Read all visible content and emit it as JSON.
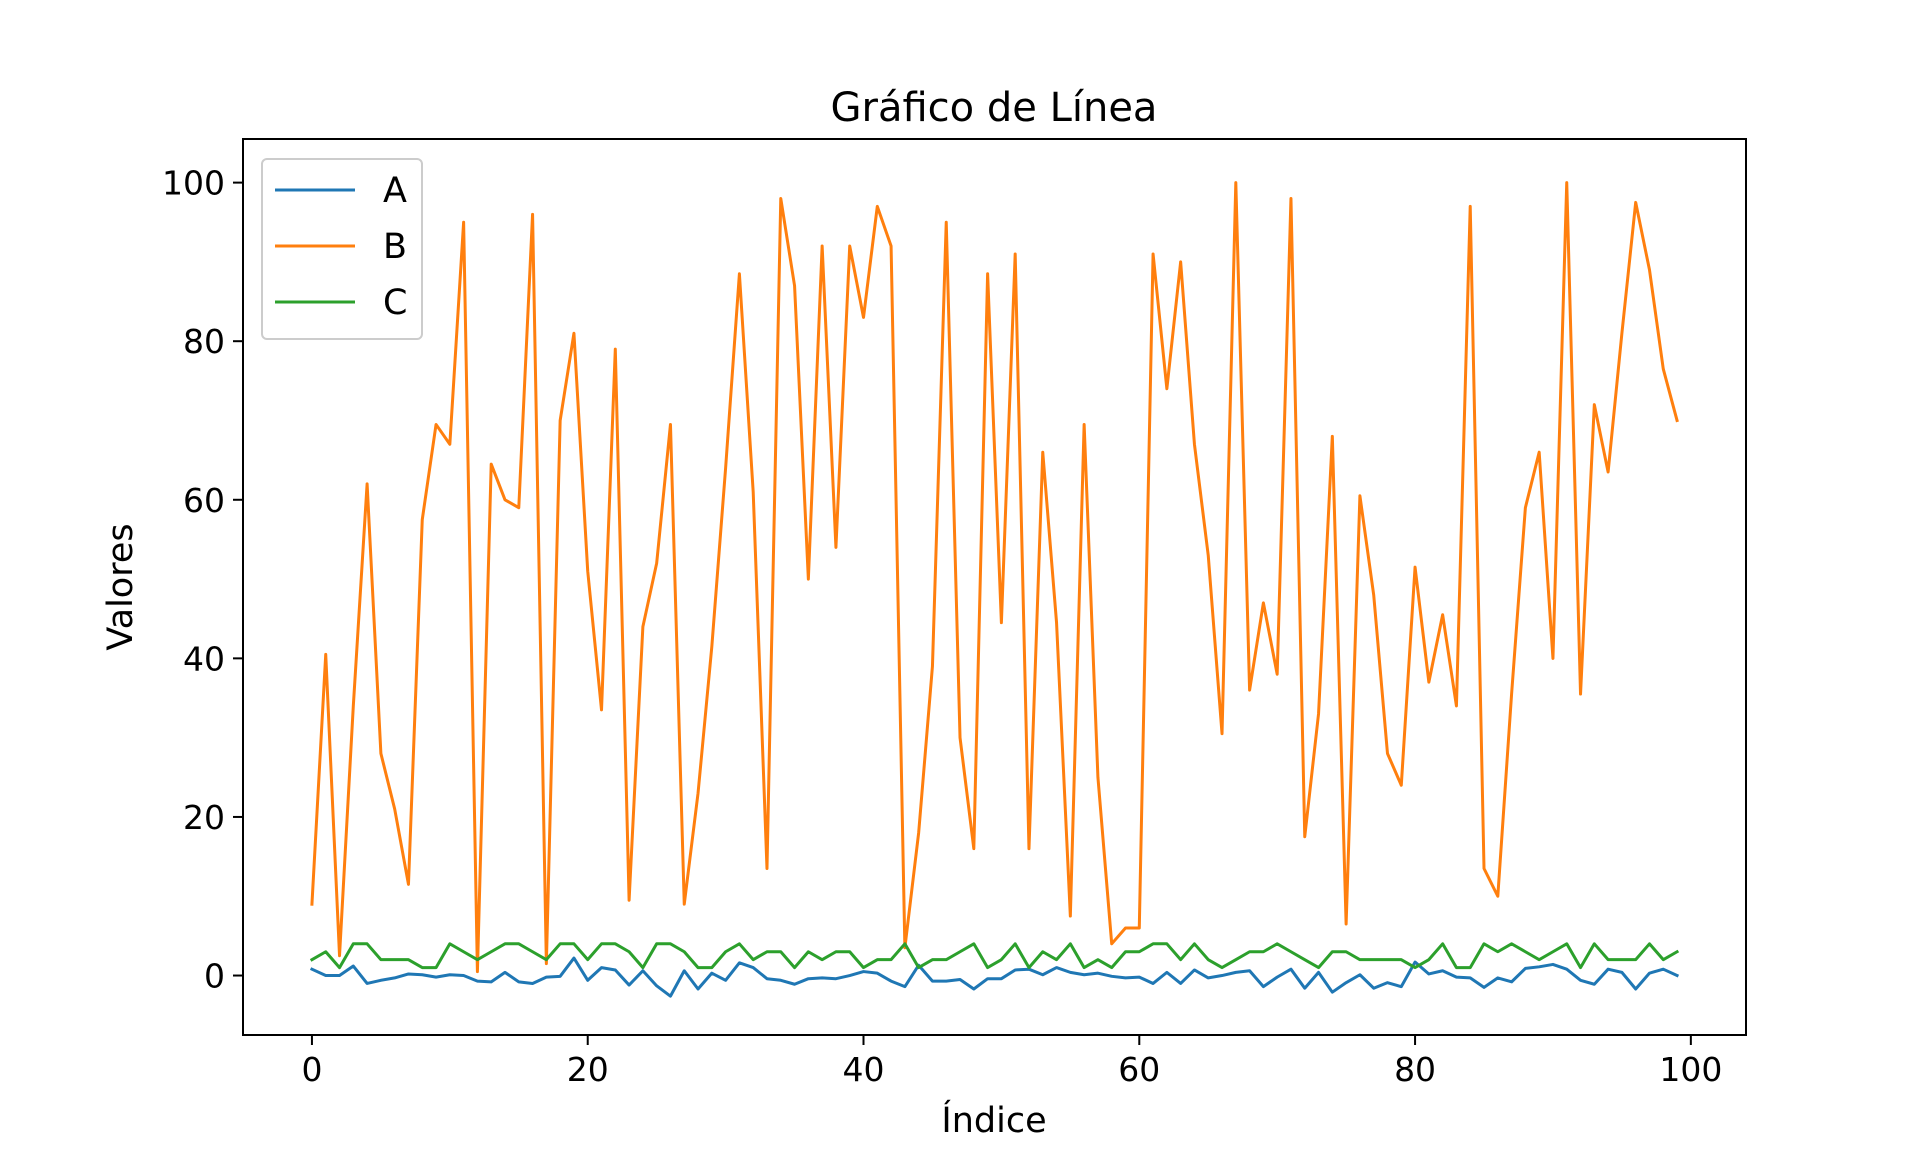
{
  "chart_data": {
    "type": "line",
    "title": "Gráfico de Línea",
    "xlabel": "Índice",
    "ylabel": "Valores",
    "xlim": [
      -5,
      104
    ],
    "ylim": [
      -7.5,
      105.5
    ],
    "xticks": [
      0,
      20,
      40,
      60,
      80,
      100
    ],
    "yticks": [
      0,
      20,
      40,
      60,
      80,
      100
    ],
    "grid": false,
    "legend_position": "upper-left",
    "x": [
      0,
      1,
      2,
      3,
      4,
      5,
      6,
      7,
      8,
      9,
      10,
      11,
      12,
      13,
      14,
      15,
      16,
      17,
      18,
      19,
      20,
      21,
      22,
      23,
      24,
      25,
      26,
      27,
      28,
      29,
      30,
      31,
      32,
      33,
      34,
      35,
      36,
      37,
      38,
      39,
      40,
      41,
      42,
      43,
      44,
      45,
      46,
      47,
      48,
      49,
      50,
      51,
      52,
      53,
      54,
      55,
      56,
      57,
      58,
      59,
      60,
      61,
      62,
      63,
      64,
      65,
      66,
      67,
      68,
      69,
      70,
      71,
      72,
      73,
      74,
      75,
      76,
      77,
      78,
      79,
      80,
      81,
      82,
      83,
      84,
      85,
      86,
      87,
      88,
      89,
      90,
      91,
      92,
      93,
      94,
      95,
      96,
      97,
      98,
      99
    ],
    "series": [
      {
        "name": "A",
        "color": "#1f77b4",
        "values": [
          0.8,
          0.0,
          0.0,
          1.2,
          -1.0,
          -0.6,
          -0.3,
          0.2,
          0.1,
          -0.2,
          0.1,
          0.0,
          -0.7,
          -0.8,
          0.4,
          -0.8,
          -1.0,
          -0.2,
          -0.1,
          2.2,
          -0.6,
          1.0,
          0.7,
          -1.2,
          0.6,
          -1.3,
          -2.6,
          0.6,
          -1.7,
          0.3,
          -0.6,
          1.6,
          1.0,
          -0.4,
          -0.6,
          -1.1,
          -0.4,
          -0.3,
          -0.4,
          0.0,
          0.5,
          0.3,
          -0.7,
          -1.4,
          1.3,
          -0.7,
          -0.7,
          -0.5,
          -1.7,
          -0.4,
          -0.4,
          0.7,
          0.8,
          0.1,
          1.0,
          0.4,
          0.1,
          0.3,
          -0.1,
          -0.3,
          -0.2,
          -1.0,
          0.4,
          -1.0,
          0.7,
          -0.3,
          0.0,
          0.4,
          0.6,
          -1.4,
          -0.2,
          0.8,
          -1.6,
          0.4,
          -2.1,
          -0.9,
          0.1,
          -1.6,
          -0.9,
          -1.4,
          1.7,
          0.2,
          0.6,
          -0.2,
          -0.3,
          -1.5,
          -0.3,
          -0.8,
          0.9,
          1.1,
          1.4,
          0.8,
          -0.6,
          -1.1,
          0.8,
          0.4,
          -1.7,
          0.3,
          0.8,
          0.0
        ]
      },
      {
        "name": "B",
        "color": "#ff7f0e",
        "values": [
          9,
          40.5,
          2.5,
          34,
          62,
          28,
          21,
          11.5,
          57.5,
          69.5,
          67,
          95,
          0.5,
          64.5,
          60,
          59,
          96,
          1.5,
          70,
          81,
          51,
          33.5,
          79,
          9.5,
          44,
          52,
          69.5,
          9,
          23,
          41.5,
          64,
          88.5,
          61,
          13.5,
          98,
          87,
          50,
          92,
          54,
          92,
          83,
          97,
          92,
          3.5,
          18,
          39,
          95,
          30,
          16,
          88.5,
          44.5,
          91,
          16,
          66,
          44.5,
          7.5,
          69.5,
          25,
          4,
          6,
          6,
          91,
          74,
          90,
          67,
          53,
          30.5,
          100,
          36,
          47,
          38,
          98,
          17.5,
          33,
          68,
          6.5,
          60.5,
          48,
          28,
          24,
          51.5,
          37,
          45.5,
          34,
          97,
          13.5,
          10,
          35.5,
          59,
          66,
          40,
          100,
          35.5,
          72,
          63.5,
          81,
          97.5,
          89,
          76.5,
          70
        ]
      },
      {
        "name": "C",
        "color": "#2ca02c",
        "values": [
          2,
          3,
          1,
          4,
          4,
          2,
          2,
          2,
          1,
          1,
          4,
          3,
          2,
          3,
          4,
          4,
          3,
          2,
          4,
          4,
          2,
          4,
          4,
          3,
          1,
          4,
          4,
          3,
          1,
          1,
          3,
          4,
          2,
          3,
          3,
          1,
          3,
          2,
          3,
          3,
          1,
          2,
          2,
          4,
          1,
          2,
          2,
          3,
          4,
          1,
          2,
          4,
          1,
          3,
          2,
          4,
          1,
          2,
          1,
          3,
          3,
          4,
          4,
          2,
          4,
          2,
          1,
          2,
          3,
          3,
          4,
          3,
          2,
          1,
          3,
          3,
          2,
          2,
          2,
          2,
          1,
          2,
          4,
          1,
          1,
          4,
          3,
          4,
          3,
          2,
          3,
          4,
          1,
          4,
          2,
          2,
          2,
          4,
          2,
          3
        ]
      }
    ]
  }
}
